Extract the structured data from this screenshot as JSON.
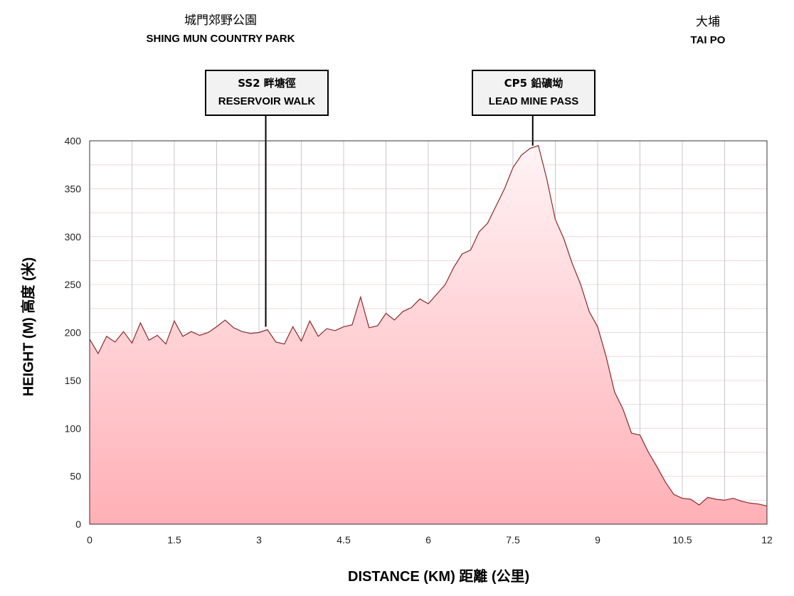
{
  "locations": {
    "start": {
      "zh": "城門郊野公園",
      "en": "SHING MUN COUNTRY PARK"
    },
    "end": {
      "zh": "大埔",
      "en": "TAI PO"
    }
  },
  "markers": [
    {
      "zh": "SS2 畔塘徑",
      "en": "RESERVOIR WALK",
      "distance_km": 3.12
    },
    {
      "zh": "CP5 鉛礦坳",
      "en": "LEAD MINE PASS",
      "distance_km": 7.85
    }
  ],
  "colors": {
    "fill_top": "#fff3f5",
    "fill_bottom": "#ffb0b6",
    "line": "#8b2a2a",
    "grid": "#c8c8c8"
  },
  "chart_data": {
    "type": "area",
    "xlabel": "DISTANCE (KM) 距離 (公里)",
    "ylabel": "HEIGHT (M) 高度 (米)",
    "xlim": [
      0,
      12
    ],
    "ylim": [
      0,
      400
    ],
    "x_ticks": [
      "0",
      "1.5",
      "3",
      "4.5",
      "6",
      "7.5",
      "9",
      "10.5",
      "12"
    ],
    "y_ticks": [
      "0",
      "50",
      "100",
      "150",
      "200",
      "250",
      "300",
      "350",
      "400"
    ],
    "grid": true,
    "x": [
      0,
      0.15,
      0.3,
      0.45,
      0.6,
      0.75,
      0.9,
      1.05,
      1.2,
      1.35,
      1.5,
      1.65,
      1.8,
      1.95,
      2.1,
      2.25,
      2.4,
      2.55,
      2.7,
      2.85,
      3.0,
      3.15,
      3.3,
      3.45,
      3.6,
      3.75,
      3.9,
      4.05,
      4.2,
      4.35,
      4.5,
      4.65,
      4.8,
      4.95,
      5.1,
      5.25,
      5.4,
      5.55,
      5.7,
      5.85,
      6.0,
      6.15,
      6.3,
      6.45,
      6.6,
      6.75,
      6.9,
      7.05,
      7.2,
      7.35,
      7.5,
      7.65,
      7.8,
      7.95,
      8.1,
      8.25,
      8.4,
      8.55,
      8.7,
      8.85,
      9.0,
      9.15,
      9.3,
      9.45,
      9.6,
      9.75,
      9.9,
      10.05,
      10.2,
      10.35,
      10.5,
      10.65,
      10.8,
      10.95,
      11.1,
      11.25,
      11.4,
      11.55,
      11.7,
      11.85,
      12.0
    ],
    "values": [
      193,
      178,
      196,
      190,
      201,
      189,
      210,
      192,
      197,
      188,
      212,
      196,
      201,
      197,
      200,
      206,
      213,
      205,
      201,
      199,
      200,
      203,
      190,
      188,
      206,
      191,
      212,
      196,
      204,
      202,
      206,
      208,
      237,
      205,
      207,
      220,
      213,
      222,
      226,
      235,
      230,
      240,
      250,
      268,
      282,
      286,
      305,
      314,
      332,
      350,
      372,
      385,
      392,
      395,
      360,
      318,
      298,
      272,
      250,
      222,
      206,
      175,
      138,
      120,
      95,
      93,
      75,
      60,
      44,
      31,
      27,
      26,
      20,
      28,
      26,
      25,
      27,
      24,
      22,
      21,
      19
    ]
  }
}
